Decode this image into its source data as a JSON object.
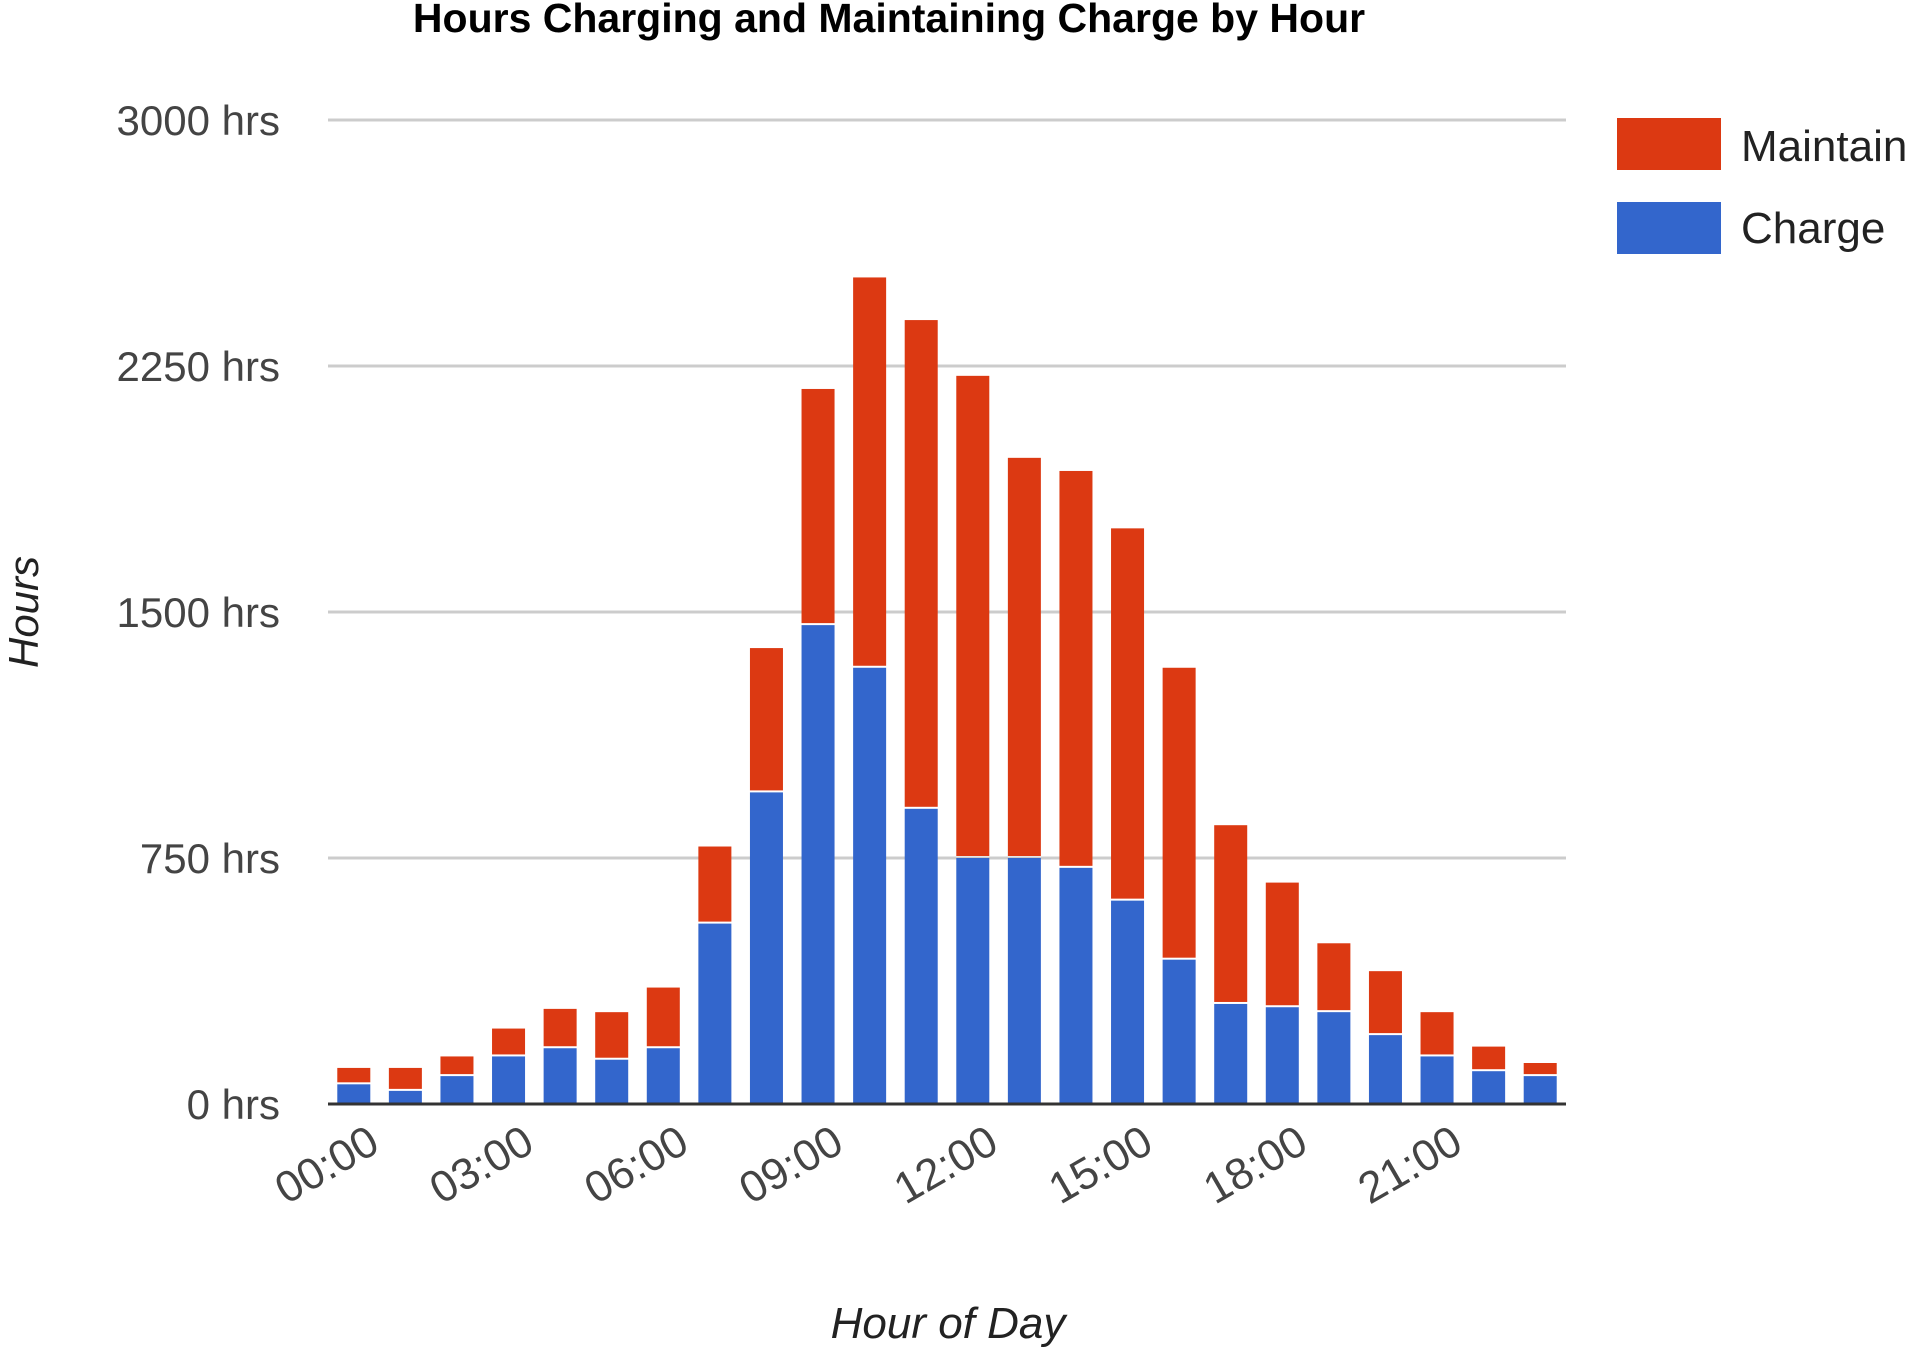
{
  "chart_data": {
    "type": "bar",
    "stacked": true,
    "title": "Hours Charging and Maintaining Charge by Hour",
    "xlabel": "Hour of Day",
    "ylabel": "Hours",
    "ylim": [
      0,
      3000
    ],
    "yticks": [
      0,
      750,
      1500,
      2250,
      3000
    ],
    "ytick_labels": [
      "0 hrs",
      "750 hrs",
      "1500 hrs",
      "2250 hrs",
      "3000 hrs"
    ],
    "categories": [
      "00:00",
      "01:00",
      "02:00",
      "03:00",
      "04:00",
      "05:00",
      "06:00",
      "07:00",
      "08:00",
      "09:00",
      "10:00",
      "11:00",
      "12:00",
      "13:00",
      "14:00",
      "15:00",
      "16:00",
      "17:00",
      "18:00",
      "19:00",
      "20:00",
      "21:00",
      "22:00",
      "23:00"
    ],
    "xtick_labels": [
      "00:00",
      "03:00",
      "06:00",
      "09:00",
      "12:00",
      "15:00",
      "18:00",
      "21:00"
    ],
    "series": [
      {
        "name": "Charge",
        "color": "#3366cc",
        "values": [
          60,
          40,
          85,
          145,
          170,
          135,
          170,
          550,
          950,
          1460,
          1330,
          900,
          750,
          750,
          720,
          620,
          440,
          305,
          295,
          280,
          210,
          145,
          100,
          85
        ]
      },
      {
        "name": "Maintain",
        "color": "#dc3912",
        "values": [
          50,
          70,
          60,
          85,
          120,
          145,
          185,
          235,
          440,
          720,
          1190,
          1490,
          1470,
          1220,
          1210,
          1135,
          890,
          545,
          380,
          210,
          195,
          135,
          75,
          40
        ]
      }
    ],
    "legend": {
      "position": "top-right",
      "entries": [
        "Maintain",
        "Charge"
      ]
    },
    "grid": true,
    "colors": {
      "charge": "#3366cc",
      "maintain": "#dc3912",
      "gridline": "#cccccc",
      "axis": "#333333",
      "text": "#444444",
      "title": "#000000"
    }
  }
}
